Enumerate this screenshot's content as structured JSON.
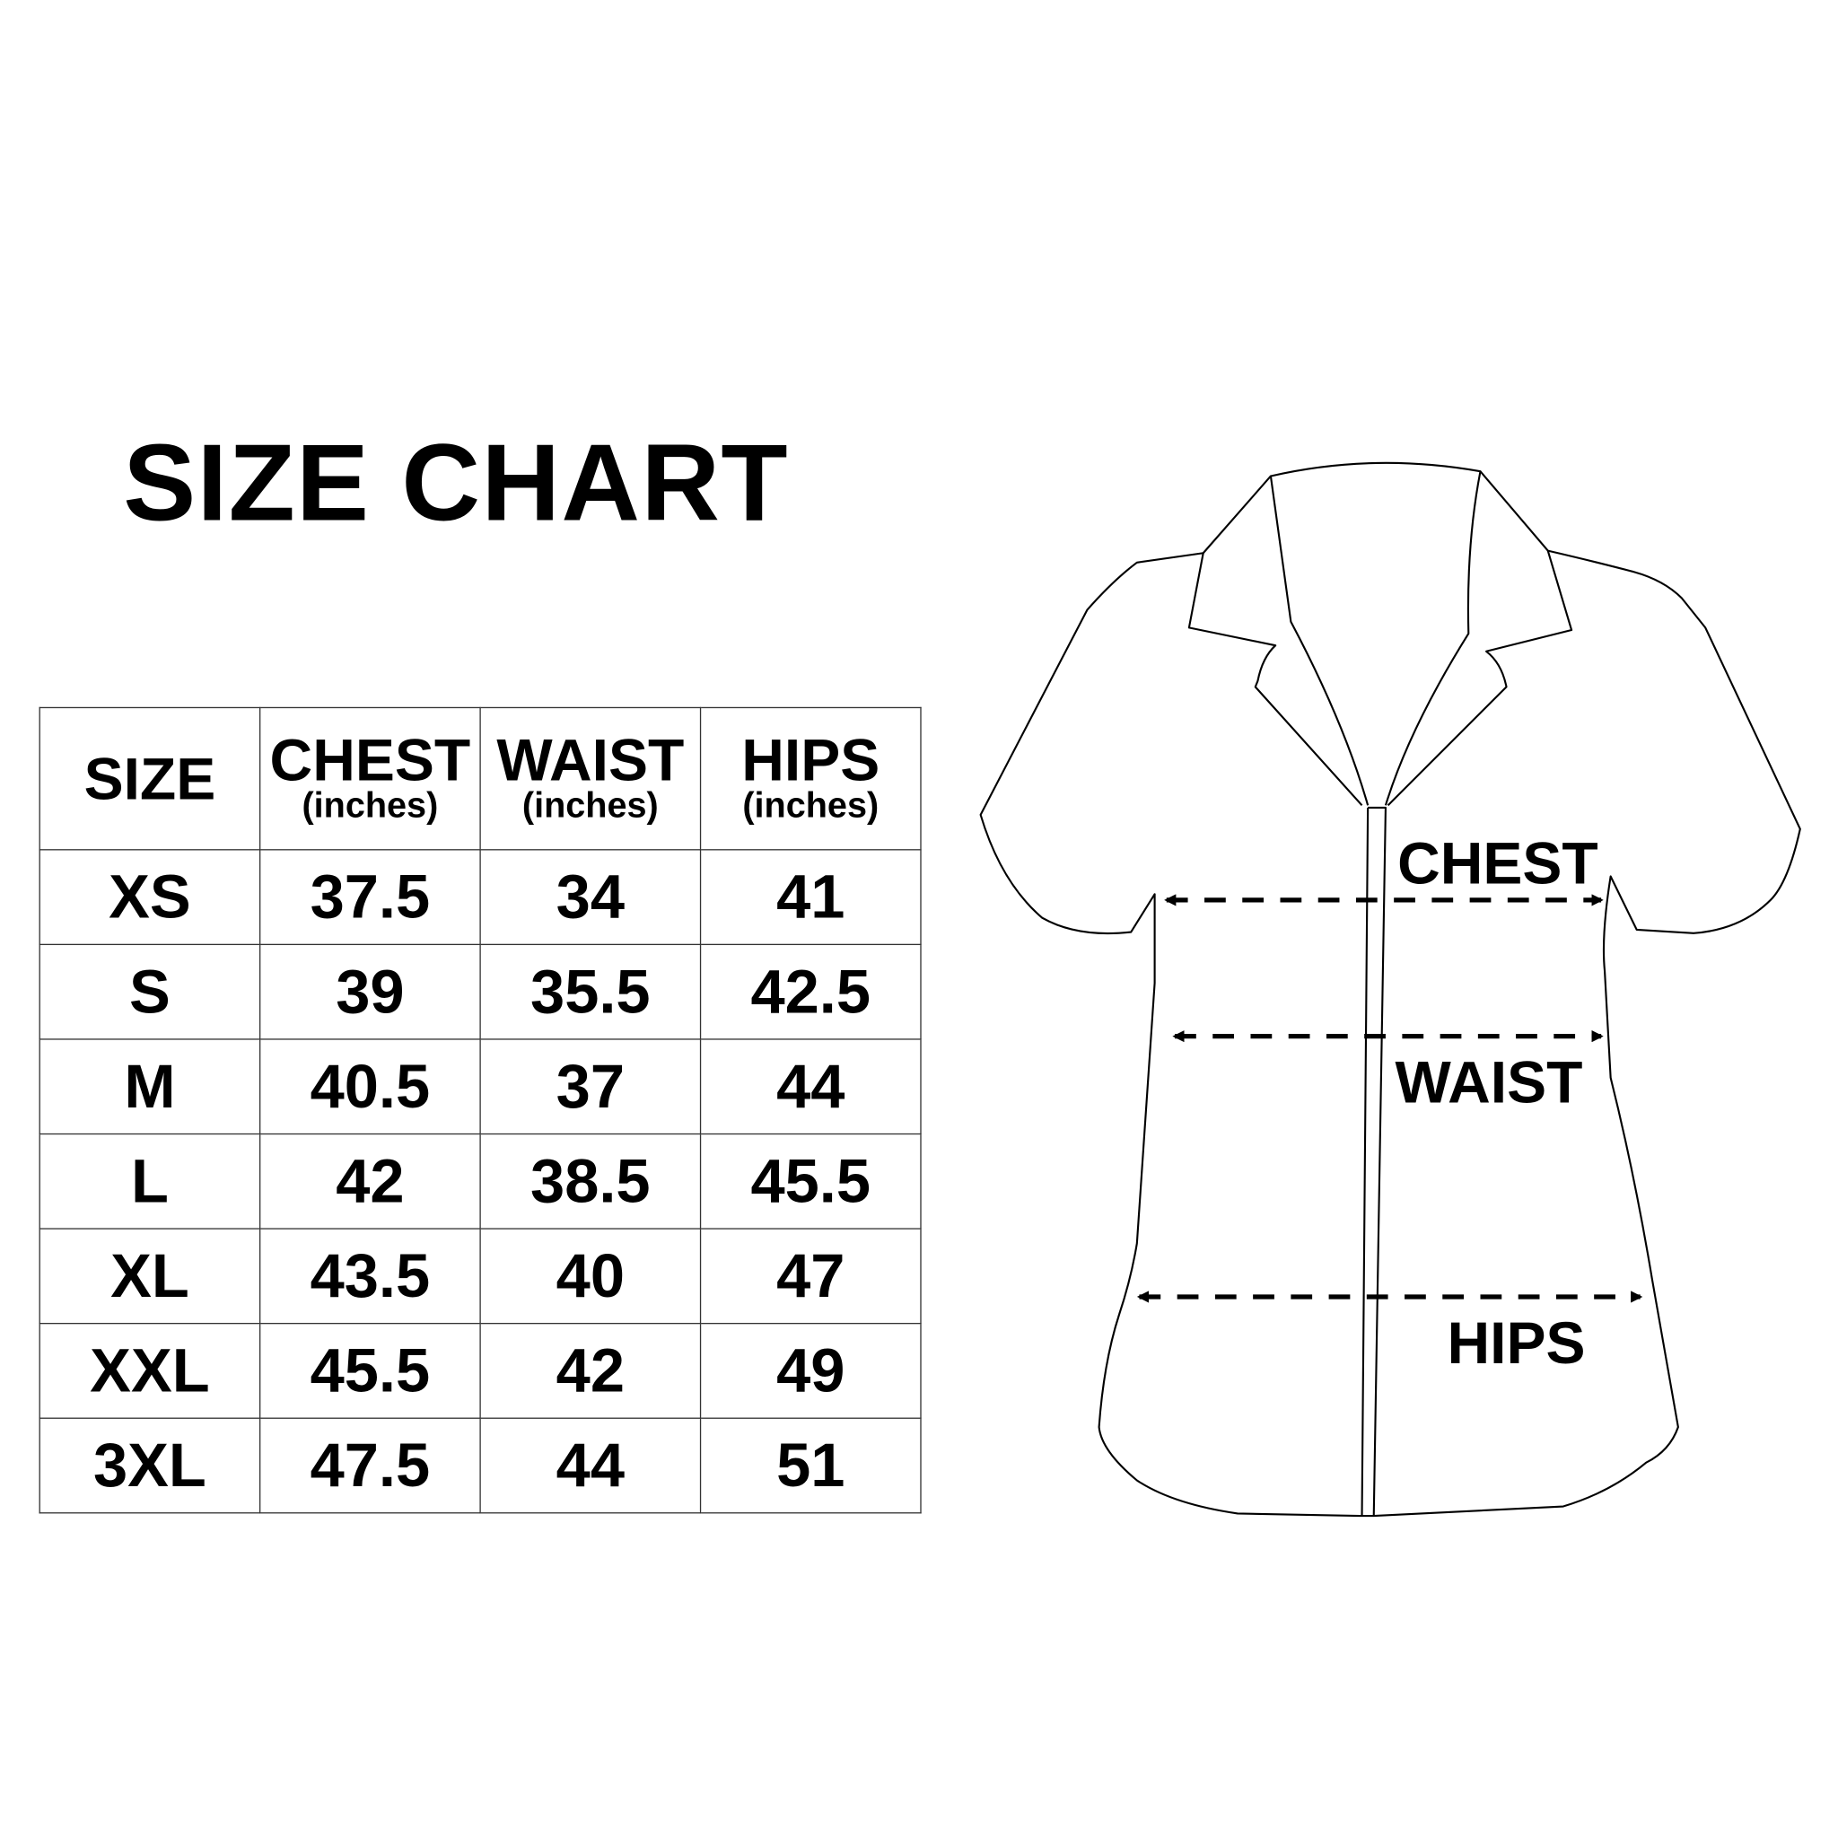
{
  "title": "SIZE CHART",
  "table": {
    "headers": [
      {
        "label": "SIZE",
        "unit": ""
      },
      {
        "label": "CHEST",
        "unit": "(inches)"
      },
      {
        "label": "WAIST",
        "unit": "(inches)"
      },
      {
        "label": "HIPS",
        "unit": "(inches)"
      }
    ],
    "rows": [
      [
        "XS",
        "37.5",
        "34",
        "41"
      ],
      [
        "S",
        "39",
        "35.5",
        "42.5"
      ],
      [
        "M",
        "40.5",
        "37",
        "44"
      ],
      [
        "L",
        "42",
        "38.5",
        "45.5"
      ],
      [
        "XL",
        "43.5",
        "40",
        "47"
      ],
      [
        "XXL",
        "45.5",
        "42",
        "49"
      ],
      [
        "3XL",
        "47.5",
        "44",
        "51"
      ]
    ]
  },
  "diagram": {
    "chest_label": "CHEST",
    "waist_label": "WAIST",
    "hips_label": "HIPS"
  }
}
